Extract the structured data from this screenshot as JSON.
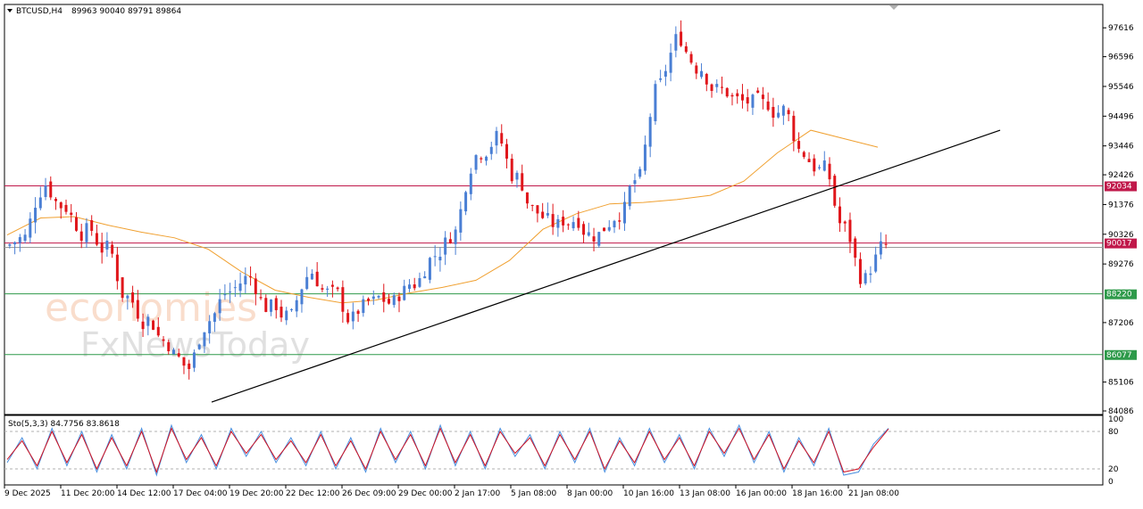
{
  "header": {
    "symbol": "BTCUSD,H4",
    "ohlc": "89963 90040 89791 89864"
  },
  "watermark": {
    "line1": "economies",
    "line2": "FxNewsToday"
  },
  "colors": {
    "bull": "#4a7fd4",
    "bear": "#e0161b",
    "ma": "#f0a030",
    "trend": "#000000",
    "resistance": "#c0184a",
    "support": "#2e9a4a",
    "stoch_main": "#4a90e0",
    "stoch_signal": "#d01020"
  },
  "chart_data": [
    {
      "type": "candlestick",
      "title": "BTCUSD,H4",
      "ylim": [
        84086,
        98000
      ],
      "y_ticks": [
        97616,
        96596,
        95546,
        94496,
        93446,
        92426,
        91376,
        90326,
        89276,
        87206,
        85106,
        84086
      ],
      "x_ticks": [
        "9 Dec 2025",
        "11 Dec 20:00",
        "14 Dec 12:00",
        "17 Dec 04:00",
        "19 Dec 20:00",
        "22 Dec 12:00",
        "26 Dec 09:00",
        "29 Dec 00:00",
        "2 Jan 17:00",
        "5 Jan 08:00",
        "8 Jan 00:00",
        "10 Jan 16:00",
        "13 Jan 08:00",
        "16 Jan 00:00",
        "18 Jan 16:00",
        "21 Jan 08:00"
      ],
      "levels": [
        {
          "label": "92034",
          "value": 92034,
          "kind": "resistance"
        },
        {
          "label": "90017",
          "value": 90017,
          "kind": "current"
        },
        {
          "label": "88220",
          "value": 88220,
          "kind": "support"
        },
        {
          "label": "86077",
          "value": 86077,
          "kind": "support"
        }
      ],
      "trendline": {
        "from": {
          "index": 0,
          "value": 84400
        },
        "to": {
          "index": 1,
          "value": 94000
        }
      },
      "moving_average": [
        90300,
        90900,
        90950,
        90650,
        90400,
        90200,
        89800,
        89000,
        88350,
        88100,
        87900,
        88000,
        88250,
        88450,
        88700,
        89400,
        90500,
        91050,
        91400,
        91450,
        91550,
        91700,
        92200,
        93200,
        94000,
        93700,
        93400
      ],
      "closes": [
        90200,
        92100,
        91300,
        90400,
        89800,
        88100,
        87300,
        86500,
        85600,
        87300,
        88300,
        88800,
        87700,
        87400,
        89000,
        88200,
        87300,
        87900,
        87900,
        88600,
        89600,
        90400,
        93100,
        93700,
        92300,
        91100,
        90600,
        90900,
        90300,
        91100,
        92300,
        95600,
        97300,
        96200,
        95400,
        95000,
        94900,
        94700,
        93200,
        92600,
        90500,
        88700,
        89900
      ],
      "last_price": 89864
    },
    {
      "type": "line",
      "title": "Sto(5,3,3) 84.7756 83.8618",
      "ylim": [
        0,
        100
      ],
      "y_ticks": [
        100,
        80,
        20,
        0
      ],
      "series": [
        {
          "name": "main",
          "values": [
            30,
            70,
            20,
            85,
            25,
            80,
            15,
            75,
            20,
            85,
            10,
            90,
            30,
            75,
            20,
            85,
            40,
            80,
            30,
            70,
            25,
            80,
            20,
            70,
            15,
            85,
            30,
            80,
            20,
            90,
            25,
            80,
            20,
            85,
            40,
            75,
            20,
            80,
            30,
            85,
            15,
            70,
            25,
            85,
            30,
            75,
            20,
            85,
            40,
            90,
            30,
            80,
            15,
            70,
            25,
            85,
            10,
            15,
            60,
            85
          ]
        },
        {
          "name": "signal",
          "values": [
            35,
            65,
            25,
            80,
            30,
            75,
            20,
            70,
            25,
            80,
            15,
            85,
            35,
            70,
            25,
            80,
            45,
            75,
            35,
            65,
            30,
            75,
            25,
            65,
            20,
            80,
            35,
            75,
            25,
            85,
            30,
            75,
            25,
            80,
            45,
            70,
            25,
            75,
            35,
            80,
            20,
            65,
            30,
            80,
            35,
            70,
            25,
            80,
            45,
            85,
            35,
            75,
            20,
            65,
            30,
            80,
            15,
            20,
            55,
            84
          ]
        }
      ]
    }
  ]
}
